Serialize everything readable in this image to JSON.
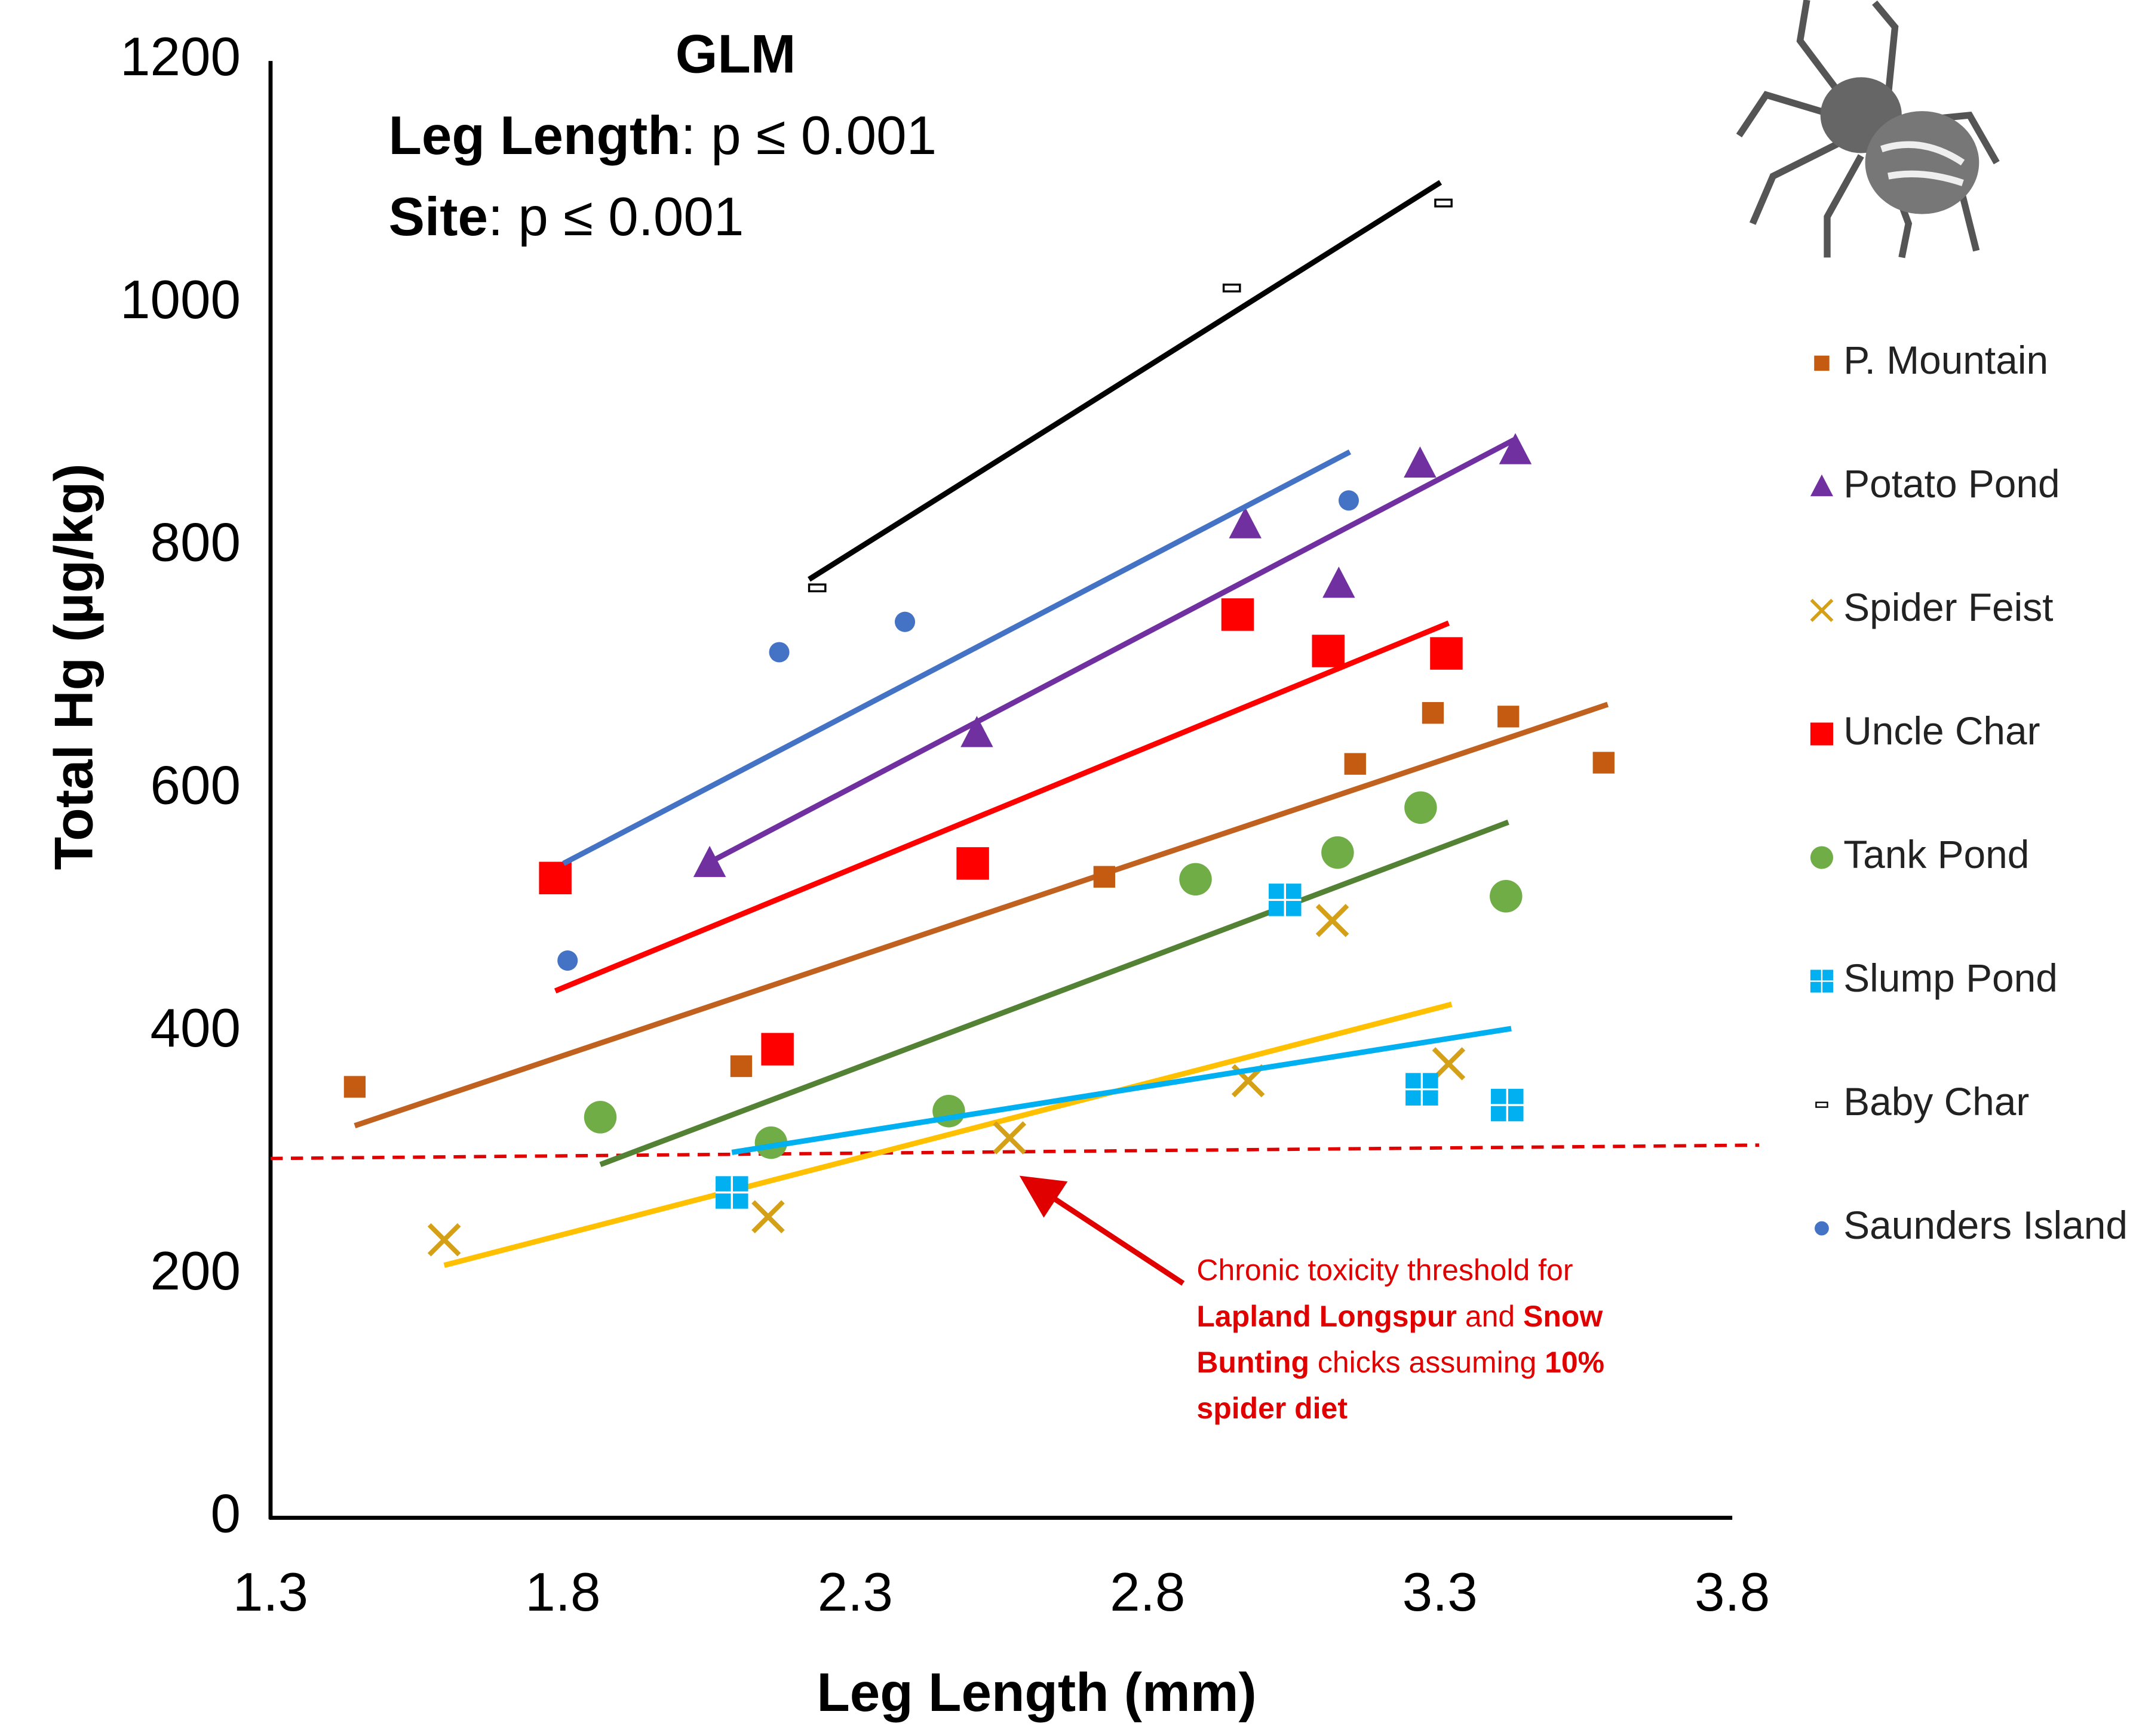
{
  "chart_data": {
    "type": "scatter",
    "x_label": "Leg Length (mm)",
    "y_label": "Total Hg (µg/kg)",
    "xlim": [
      1.3,
      3.8
    ],
    "xticks": [
      1.3,
      1.8,
      2.3,
      2.8,
      3.3,
      3.8
    ],
    "ylim": [
      0,
      1200
    ],
    "yticks": [
      0,
      200,
      400,
      600,
      800,
      1000,
      1200
    ],
    "stats_title": "GLM",
    "stats": [
      {
        "label": "Leg Length",
        "text": ": p ≤ 0.001"
      },
      {
        "label": "Site",
        "text": ": p ≤ 0.001"
      }
    ],
    "series": [
      {
        "name": "P. Mountain",
        "marker": "small-square",
        "color": "#c55a11",
        "line_color": "#c0611f",
        "x": [
          1.444,
          2.105,
          2.726,
          3.155,
          3.288,
          3.417,
          3.58
        ],
        "values": [
          355,
          372,
          528,
          621,
          663,
          660,
          622
        ],
        "trend_x": [
          1.444,
          3.587
        ],
        "trend_y": [
          323,
          670
        ]
      },
      {
        "name": "Potato Pond",
        "marker": "triangle",
        "color": "#7030a0",
        "line_color": "#7030a0",
        "x": [
          2.051,
          2.508,
          2.967,
          3.127,
          3.266,
          3.429
        ],
        "values": [
          539,
          646,
          818,
          769,
          868,
          879
        ],
        "trend_x": [
          2.051,
          3.427
        ],
        "trend_y": [
          540,
          888
        ]
      },
      {
        "name": "Spider Feist",
        "marker": "cross",
        "color": "#d4a017",
        "line_color": "#ffc000",
        "x": [
          1.597,
          2.151,
          2.564,
          2.972,
          3.116,
          3.315
        ],
        "values": [
          229,
          248,
          313,
          360,
          492,
          374
        ],
        "trend_x": [
          1.597,
          3.32
        ],
        "trend_y": [
          208,
          423
        ]
      },
      {
        "name": "Uncle Char",
        "marker": "big-square",
        "color": "#ff0000",
        "line_color": "#ff0000",
        "x": [
          1.787,
          2.167,
          2.501,
          2.954,
          3.109,
          3.311
        ],
        "values": [
          527,
          386,
          539,
          744,
          714,
          712
        ],
        "trend_x": [
          1.787,
          3.315
        ],
        "trend_y": [
          434,
          737
        ]
      },
      {
        "name": "Tank Pond",
        "marker": "circle",
        "color": "#70ad47",
        "line_color": "#548235",
        "x": [
          1.864,
          2.156,
          2.46,
          2.882,
          3.125,
          3.267,
          3.413
        ],
        "values": [
          330,
          309,
          335,
          526,
          548,
          585,
          512
        ],
        "trend_x": [
          1.864,
          3.417
        ],
        "trend_y": [
          291,
          573
        ]
      },
      {
        "name": "Slump Pond",
        "marker": "tile",
        "color": "#00b0f0",
        "line_color": "#00b0f0",
        "x": [
          2.089,
          3.035,
          3.269,
          3.415
        ],
        "values": [
          268,
          509,
          353,
          340
        ],
        "trend_x": [
          2.089,
          3.422
        ],
        "trend_y": [
          301,
          403
        ]
      },
      {
        "name": "Baby Char",
        "marker": "dash",
        "color": "#000000",
        "line_color": "#000000",
        "x": [
          2.235,
          2.944,
          3.306
        ],
        "values": [
          766,
          1013,
          1083
        ],
        "trend_x": [
          2.221,
          3.301
        ],
        "trend_y": [
          773,
          1100
        ]
      },
      {
        "name": "Saunders Island",
        "marker": "dot",
        "color": "#4472c4",
        "line_color": "#4472c4",
        "x": [
          1.808,
          2.17,
          2.385,
          3.144
        ],
        "values": [
          459,
          713,
          738,
          838
        ],
        "trend_x": [
          1.801,
          3.146
        ],
        "trend_y": [
          539,
          878
        ]
      }
    ],
    "threshold": {
      "color": "#e00000",
      "x": [
        1.3,
        3.846
      ],
      "y": [
        296,
        307
      ]
    },
    "annotation": [
      [
        "Chronic toxicity threshold for"
      ],
      [
        "Lapland Longspur",
        " and ",
        "Snow"
      ],
      [
        "Bunting",
        " chicks assuming ",
        "10%"
      ],
      [
        "spider diet"
      ]
    ],
    "annotation_bold": [
      [
        false
      ],
      [
        true,
        false,
        true
      ],
      [
        true,
        false,
        true
      ],
      [
        true
      ]
    ]
  }
}
